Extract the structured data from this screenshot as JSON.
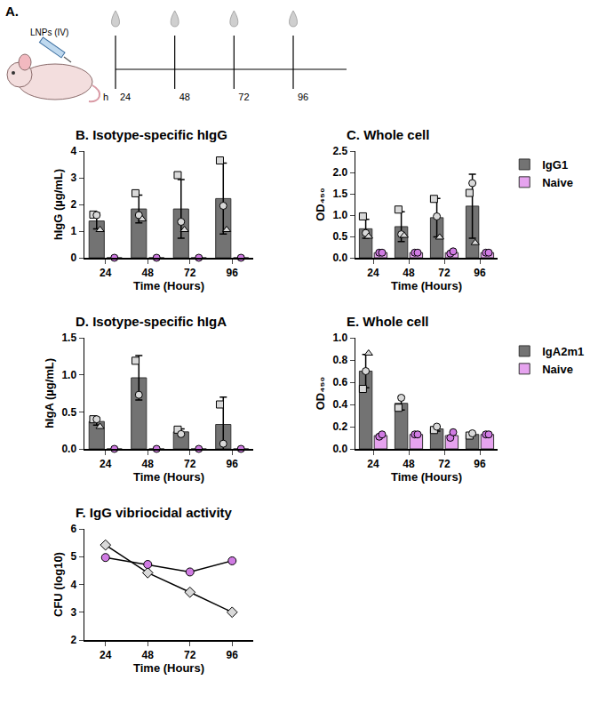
{
  "schematic": {
    "label": "A.",
    "injection": "LNPs (IV)",
    "unit": "h",
    "timepoints": [
      24,
      48,
      72,
      96
    ]
  },
  "chart_data": [
    {
      "type": "bar",
      "title": "B. Isotype-specific hIgG",
      "x_label": "Time (Hours)",
      "y_label": "hIgG (µg/mL)",
      "categories": [
        "24",
        "48",
        "72",
        "96"
      ],
      "ylim": [
        0,
        4
      ],
      "yticks": [
        0,
        1,
        2,
        3,
        4
      ],
      "grid": false,
      "series": [
        {
          "color": "#737373",
          "values": [
            1.38,
            1.83,
            1.83,
            2.22
          ],
          "error": [
            0.3,
            0.52,
            1.1,
            1.33
          ],
          "points": [
            {
              "marker": "square",
              "color": "#d9d9d9",
              "values": [
                1.62,
                2.42,
                3.1,
                3.65
              ]
            },
            {
              "marker": "circle",
              "color": "#d9d9d9",
              "values": [
                1.6,
                1.6,
                1.35,
                1.95
              ]
            },
            {
              "marker": "triangle",
              "color": "#d9d9d9",
              "values": [
                1.05,
                1.45,
                1.05,
                1.05
              ]
            }
          ]
        },
        {
          "color": "#e6a3ef",
          "values": [
            0,
            0,
            0,
            0
          ],
          "points": [
            {
              "marker": "circle",
              "color": "#d07be3",
              "values": [
                0,
                0,
                0,
                0
              ]
            }
          ]
        }
      ]
    },
    {
      "type": "bar",
      "title": "C. Whole cell",
      "x_label": "Time (Hours)",
      "y_label": "OD₄₅₀",
      "categories": [
        "24",
        "48",
        "72",
        "96"
      ],
      "ylim": [
        0,
        2.5
      ],
      "yticks": [
        {
          "value": 0,
          "label": "0.0"
        },
        0.5,
        {
          "value": 1,
          "label": "1.0"
        },
        1.5,
        {
          "value": 2,
          "label": "2.0"
        },
        2.5
      ],
      "grid": false,
      "legend": "right",
      "series": [
        {
          "name": "IgG1",
          "color": "#737373",
          "values": [
            0.68,
            0.73,
            0.94,
            1.21
          ],
          "error": [
            0.22,
            0.35,
            0.45,
            0.75
          ],
          "points": [
            {
              "marker": "square",
              "color": "#d9d9d9",
              "values": [
                0.97,
                1.13,
                1.38,
                1.52
              ]
            },
            {
              "marker": "circle",
              "color": "#d9d9d9",
              "values": [
                0.58,
                0.55,
                0.97,
                1.75
              ]
            },
            {
              "marker": "triangle",
              "color": "#d9d9d9",
              "values": [
                0.5,
                0.52,
                0.48,
                0.35
              ]
            }
          ]
        },
        {
          "name": "Naive",
          "color": "#e6a3ef",
          "values": [
            0.12,
            0.12,
            0.12,
            0.12
          ],
          "points": [
            {
              "marker": "circle",
              "color": "#d07be3",
              "values": [
                0.12,
                0.12,
                0.1,
                0.12
              ]
            },
            {
              "marker": "circle",
              "color": "#d07be3",
              "values": [
                0.12,
                0.12,
                0.15,
                0.12
              ]
            }
          ]
        }
      ]
    },
    {
      "type": "bar",
      "title": "D. Isotype-specific hIgA",
      "x_label": "Time (Hours)",
      "y_label": "hIgA (µg/mL)",
      "categories": [
        "24",
        "48",
        "72",
        "96"
      ],
      "ylim": [
        0,
        1.5
      ],
      "yticks": [
        {
          "value": 0,
          "label": "0.0"
        },
        0.5,
        {
          "value": 1,
          "label": "1.0"
        },
        1.5
      ],
      "grid": false,
      "series": [
        {
          "color": "#737373",
          "values": [
            0.37,
            0.96,
            0.23,
            0.33
          ],
          "error": [
            0.05,
            0.3,
            0.04,
            0.37
          ],
          "points": [
            {
              "marker": "square",
              "color": "#d9d9d9",
              "values": [
                0.4,
                1.19,
                0.26,
                0.6
              ]
            },
            {
              "marker": "circle",
              "color": "#d9d9d9",
              "values": [
                0.4,
                0.73,
                0.2,
                0.07
              ]
            },
            {
              "marker": "triangle",
              "color": "#d9d9d9",
              "values": [
                0.3,
                null,
                null,
                null
              ]
            }
          ]
        },
        {
          "color": "#e6a3ef",
          "values": [
            0,
            0,
            0,
            0
          ],
          "points": [
            {
              "marker": "circle",
              "color": "#d07be3",
              "values": [
                0,
                0,
                0,
                0
              ]
            }
          ]
        }
      ]
    },
    {
      "type": "bar",
      "title": "E. Whole cell",
      "x_label": "Time (Hours)",
      "y_label": "OD₄₅₀",
      "categories": [
        "24",
        "48",
        "72",
        "96"
      ],
      "ylim": [
        0,
        1
      ],
      "yticks": [
        {
          "value": 0,
          "label": "0.0"
        },
        0.2,
        0.4,
        0.6,
        0.8,
        {
          "value": 1,
          "label": "1.0"
        }
      ],
      "grid": false,
      "legend": "right",
      "series": [
        {
          "name": "IgA2m1",
          "color": "#737373",
          "values": [
            0.7,
            0.41,
            0.18,
            0.13
          ],
          "error": [
            0.15,
            0.06,
            0.02,
            0.01
          ],
          "points": [
            {
              "marker": "square",
              "color": "#d9d9d9",
              "values": [
                0.54,
                0.37,
                0.17,
                0.12
              ]
            },
            {
              "marker": "circle",
              "color": "#d9d9d9",
              "values": [
                0.7,
                0.46,
                0.2,
                0.14
              ]
            },
            {
              "marker": "triangle",
              "color": "#d9d9d9",
              "values": [
                0.86,
                null,
                null,
                null
              ]
            }
          ]
        },
        {
          "name": "Naive",
          "color": "#e6a3ef",
          "values": [
            0.12,
            0.13,
            0.12,
            0.13
          ],
          "points": [
            {
              "marker": "circle",
              "color": "#d07be3",
              "values": [
                0.11,
                0.13,
                0.1,
                0.13
              ]
            },
            {
              "marker": "circle",
              "color": "#d07be3",
              "values": [
                0.13,
                0.13,
                0.15,
                0.13
              ]
            }
          ]
        }
      ]
    },
    {
      "type": "line",
      "title": "F. IgG vibriocidal activity",
      "x_label": "Time (Hours)",
      "y_label": "CFU (log10)",
      "categories": [
        "24",
        "48",
        "72",
        "96"
      ],
      "ylim": [
        2,
        6
      ],
      "yticks": [
        2,
        3,
        4,
        5,
        6
      ],
      "grid": false,
      "series": [
        {
          "color": "#d9d9d9",
          "marker": "diamond",
          "values": [
            5.42,
            4.42,
            3.72,
            3.0
          ]
        },
        {
          "color": "#d07be3",
          "marker": "circle",
          "values": [
            4.97,
            4.72,
            4.45,
            4.85
          ]
        }
      ]
    }
  ]
}
